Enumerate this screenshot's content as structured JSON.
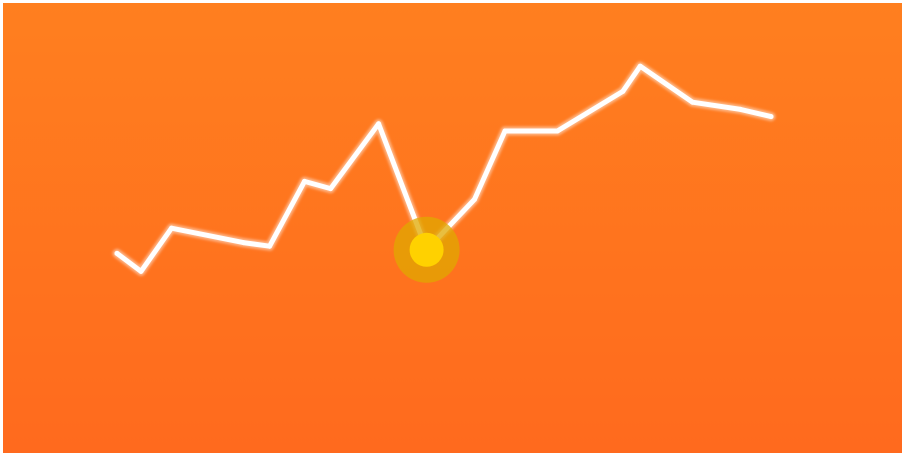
{
  "colors": {
    "background_top": "#FF7F1F",
    "background_bottom": "#FF6A1E",
    "line": "#FFFFFF",
    "highlight_outer": "#E0A800",
    "highlight_inner": "#FFD100"
  },
  "chart_data": {
    "type": "line",
    "title": "",
    "xlabel": "",
    "ylabel": "",
    "grid": false,
    "legend": "none",
    "axes_visible": false,
    "x": [
      0,
      1,
      2,
      3,
      4,
      5,
      6,
      7,
      8,
      9,
      10,
      11,
      12,
      13,
      14,
      15,
      16
    ],
    "xlim": [
      0,
      16
    ],
    "ylim": [
      0,
      10
    ],
    "series": [
      {
        "values": [
          3.6,
          3.1,
          4.3,
          3.9,
          3.8,
          5.6,
          5.4,
          7.2,
          3.7,
          5.1,
          7.0,
          7.0,
          8.1,
          8.8,
          7.8,
          7.6,
          7.4
        ]
      }
    ],
    "x_values_used": [
      0,
      0.55,
      1.25,
      2.9,
      3.5,
      4.3,
      4.9,
      6.0,
      7.1,
      8.2,
      8.9,
      10.1,
      11.6,
      12.0,
      13.2,
      14.3,
      15.0
    ],
    "highlight_point_index": 8
  }
}
